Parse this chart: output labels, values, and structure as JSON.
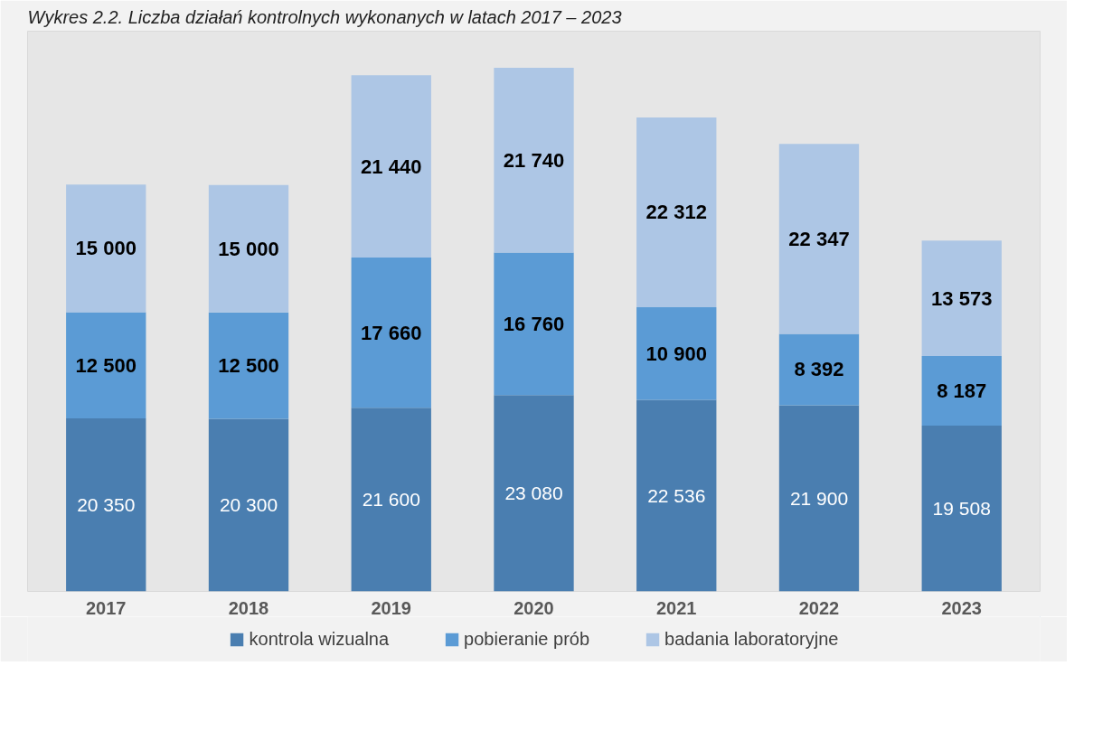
{
  "chart_data": {
    "type": "bar",
    "stacked": true,
    "title": "Wykres 2.2. Liczba działań kontrolnych wykonanych w latach 2017 – 2023",
    "categories": [
      "2017",
      "2018",
      "2019",
      "2020",
      "2021",
      "2022",
      "2023"
    ],
    "series": [
      {
        "name": "kontrola wizualna",
        "color": "#4a7eb0",
        "values": [
          20350,
          20300,
          21600,
          23080,
          22536,
          21900,
          19508
        ]
      },
      {
        "name": "pobieranie prób",
        "color": "#5b9bd5",
        "values": [
          12500,
          12500,
          17660,
          16760,
          10900,
          8392,
          8187
        ]
      },
      {
        "name": "badania laboratoryjne",
        "color": "#adc6e5",
        "values": [
          15000,
          15000,
          21440,
          21740,
          22312,
          22347,
          13573
        ]
      }
    ],
    "data_labels": true,
    "legend": "bottom"
  }
}
